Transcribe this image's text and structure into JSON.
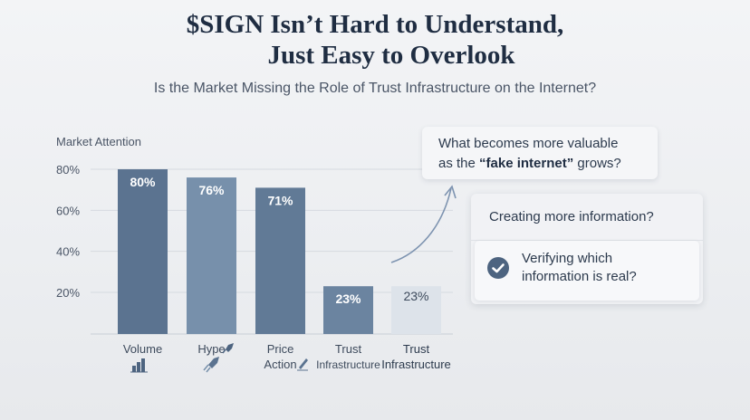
{
  "header": {
    "title_line1": "$SIGN Isn’t Hard to Understand,",
    "title_line2": "Just Easy to Overlook",
    "subtitle": "Is the Market Missing the Role of Trust Infrastructure on the Internet?"
  },
  "chart_data": {
    "type": "bar",
    "title": "Market Attention",
    "categories": [
      "Volume",
      "Hype",
      "Price Action",
      "Trust Infrastructure",
      "Trust Infrastructure"
    ],
    "category_lines": [
      [
        "Volume"
      ],
      [
        "Hype"
      ],
      [
        "Price",
        "Action"
      ],
      [
        "Trust",
        "Infrastructure"
      ],
      [
        "Trust",
        "Infrastructure"
      ]
    ],
    "category_icons": [
      "bar-chart-icon",
      "rocket-icon",
      "pen-icon",
      "",
      ""
    ],
    "values": [
      80,
      76,
      71,
      23,
      23
    ],
    "value_labels": [
      "80%",
      "76%",
      "71%",
      "23%",
      "23%"
    ],
    "y_ticks": [
      20,
      40,
      60,
      80
    ],
    "y_tick_labels": [
      "20%",
      "40%",
      "60%",
      "80%"
    ],
    "ylim": [
      0,
      80
    ],
    "grid": true,
    "colors": [
      "#5b7390",
      "#7790ab",
      "#617a96",
      "#6b84a0",
      "#dde3ea"
    ]
  },
  "callout": {
    "line1": "What becomes more valuable",
    "line2_prefix": "as the ",
    "line2_bold": "“fake internet”",
    "line2_suffix": " grows?"
  },
  "options": {
    "option1": "Creating more information?",
    "option2_line1": "Verifying which",
    "option2_line2": "information is real?"
  },
  "colors": {
    "arrow": "#7d93b0",
    "check_bg": "#4d6480",
    "text_dark": "#1f2d42"
  }
}
